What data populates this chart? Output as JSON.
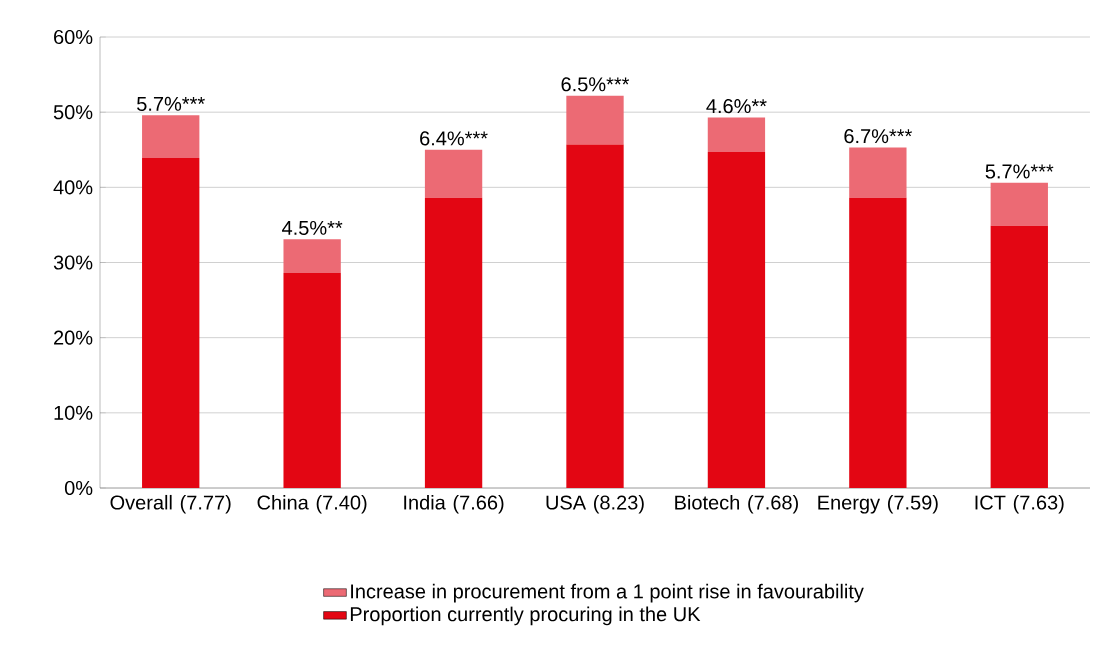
{
  "chart_data": {
    "type": "bar",
    "stacked": true,
    "categories": [
      "Overall (7.77)",
      "China (7.40)",
      "India (7.66)",
      "USA (8.23)",
      "Biotech (7.68)",
      "Energy (7.59)",
      "ICT (7.63)"
    ],
    "series": [
      {
        "name": "Proportion currently procuring in the UK",
        "color": "#e30613",
        "values": [
          43.9,
          28.6,
          38.6,
          45.7,
          44.7,
          38.6,
          34.9
        ]
      },
      {
        "name": "Increase in procurement from a 1 point rise in favourability",
        "color": "#ec6a74",
        "values": [
          5.7,
          4.5,
          6.4,
          6.5,
          4.6,
          6.7,
          5.7
        ],
        "value_labels": [
          "5.7%***",
          "4.5%**",
          "6.4%***",
          "6.5%***",
          "4.6%**",
          "6.7%***",
          "5.7%***"
        ]
      }
    ],
    "ylim": [
      0,
      60
    ],
    "yticks": [
      {
        "value": 0,
        "label": "0%"
      },
      {
        "value": 10,
        "label": "10%"
      },
      {
        "value": 20,
        "label": "20%"
      },
      {
        "value": 30,
        "label": "30%"
      },
      {
        "value": 40,
        "label": "40%"
      },
      {
        "value": 50,
        "label": "50%"
      },
      {
        "value": 60,
        "label": "60%"
      }
    ],
    "grid": "y",
    "legend": "bottom"
  }
}
